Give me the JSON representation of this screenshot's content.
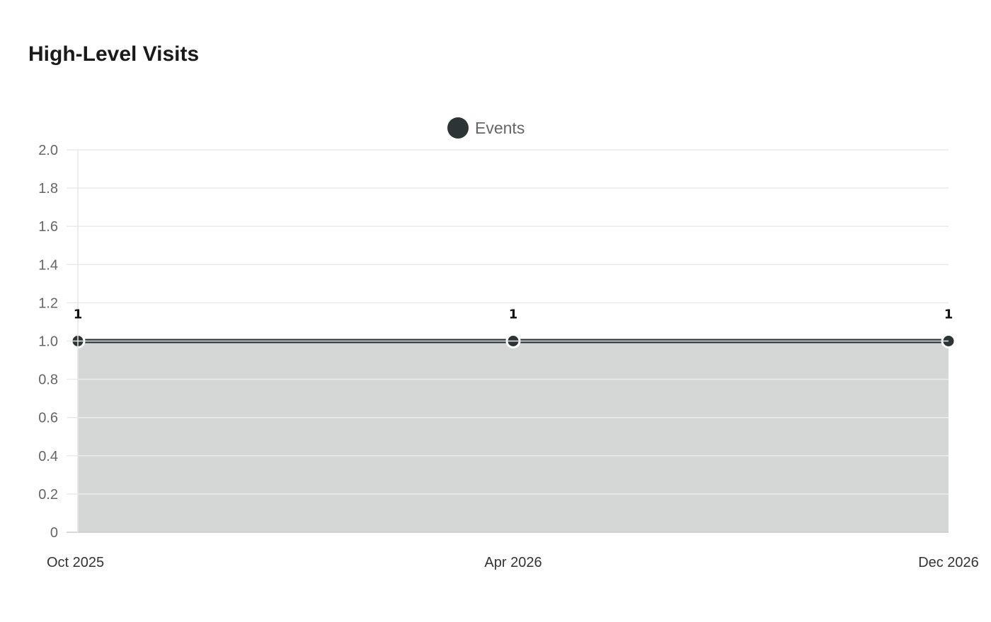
{
  "title": "High-Level Visits",
  "chart_data": {
    "type": "area",
    "title": "High-Level Visits",
    "categories": [
      "Oct 2025",
      "Apr 2026",
      "Dec 2026"
    ],
    "series": [
      {
        "name": "Events",
        "values": [
          1,
          1,
          1
        ],
        "color": "#2d3436",
        "fill": "#d5d7d7"
      }
    ],
    "data_labels": [
      "1",
      "1",
      "1"
    ],
    "yticks": [
      "0",
      "0.2",
      "0.4",
      "0.6",
      "0.8",
      "1.0",
      "1.2",
      "1.4",
      "1.6",
      "1.8",
      "2.0"
    ],
    "ylim": [
      0,
      2
    ],
    "grid": true,
    "legend": {
      "position": "top",
      "label": "Events"
    }
  }
}
